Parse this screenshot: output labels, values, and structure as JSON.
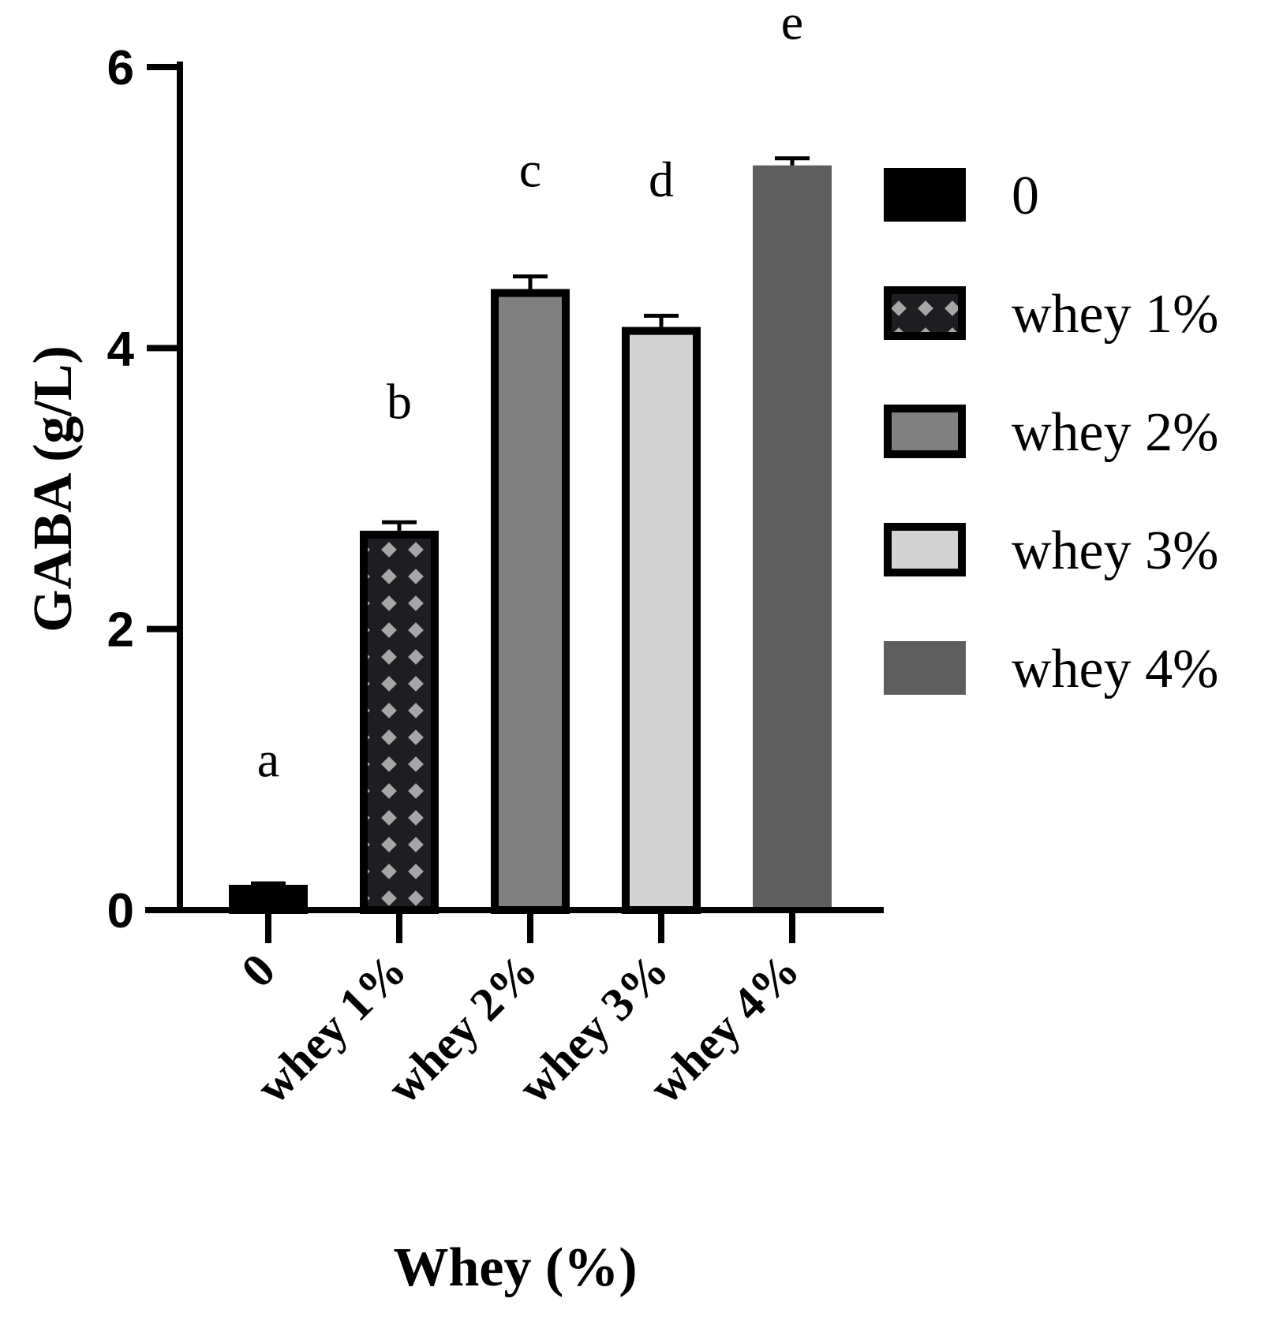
{
  "chart_data": {
    "type": "bar",
    "title": "",
    "xlabel": "Whey (%)",
    "ylabel": "GABA (g/L)",
    "ylim": [
      0,
      6
    ],
    "yticks": [
      "0",
      "2",
      "4",
      "6"
    ],
    "categories": [
      "0",
      "whey 1%",
      "whey 2%",
      "whey 3%",
      "whey 4%"
    ],
    "values": [
      0.18,
      2.7,
      4.42,
      4.15,
      5.3
    ],
    "errors": [
      0.01,
      0.06,
      0.09,
      0.08,
      0.05
    ],
    "significance_letters": [
      "a",
      "b",
      "c",
      "d",
      "e"
    ],
    "letter_levels": [
      0.95,
      3.5,
      5.15,
      5.08,
      6.2
    ],
    "fills": [
      "#000000",
      "pattern-checker",
      "#808080",
      "#d3d3d3",
      "#5e5e5e"
    ],
    "bar_outline": [
      true,
      true,
      true,
      true,
      false
    ],
    "legend": {
      "position": "right",
      "entries": [
        "0",
        "whey 1%",
        "whey 2%",
        "whey 3%",
        "whey 4%"
      ]
    },
    "grid": false
  }
}
